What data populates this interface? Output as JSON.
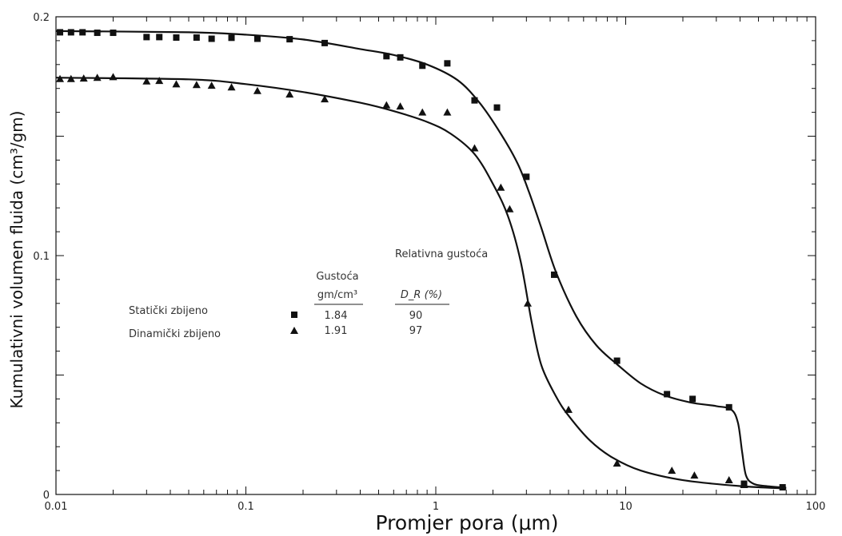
{
  "chart_data": {
    "type": "scatter",
    "title": "",
    "xlabel": "Promjer pora (μm)",
    "ylabel": "Kumulativni volumen fluida (cm³/gm)",
    "xscale": "log",
    "xlim": [
      0.01,
      100
    ],
    "ylim": [
      0,
      0.2
    ],
    "x_tick_labels": [
      "0.01",
      "0.1",
      "1",
      "10",
      "100"
    ],
    "y_tick_labels": [
      "0",
      "0.1",
      "0.2"
    ],
    "grid": false,
    "legend": {
      "position": "center-left",
      "header_density": "Gustoća",
      "header_density_unit": "gm/cm³",
      "header_relative": "Relativna gustoća",
      "header_relative_unit": "D_R (%)",
      "rows": [
        {
          "label": "Statički zbijeno",
          "marker": "square",
          "density": "1.84",
          "relative": "90"
        },
        {
          "label": "Dinamički zbijeno",
          "marker": "triangle",
          "density": "1.91",
          "relative": "97"
        }
      ]
    },
    "series": [
      {
        "name": "Statički zbijeno",
        "marker": "square",
        "color": "#111111",
        "points": [
          [
            0.0105,
            0.1935
          ],
          [
            0.012,
            0.1935
          ],
          [
            0.0138,
            0.1935
          ],
          [
            0.0165,
            0.1933
          ],
          [
            0.02,
            0.1933
          ],
          [
            0.03,
            0.1915
          ],
          [
            0.035,
            0.1915
          ],
          [
            0.043,
            0.1913
          ],
          [
            0.055,
            0.1913
          ],
          [
            0.066,
            0.1908
          ],
          [
            0.084,
            0.1912
          ],
          [
            0.115,
            0.1908
          ],
          [
            0.17,
            0.1906
          ],
          [
            0.26,
            0.189
          ],
          [
            0.55,
            0.1835
          ],
          [
            0.65,
            0.183
          ],
          [
            0.85,
            0.1795
          ],
          [
            1.15,
            0.1805
          ],
          [
            1.6,
            0.165
          ],
          [
            2.1,
            0.162
          ],
          [
            3.0,
            0.133
          ],
          [
            4.2,
            0.092
          ],
          [
            9.0,
            0.056
          ],
          [
            16.5,
            0.042
          ],
          [
            22.5,
            0.04
          ],
          [
            35.0,
            0.0365
          ],
          [
            42.0,
            0.0045
          ],
          [
            67.0,
            0.003
          ]
        ],
        "fit_curve": [
          [
            0.01,
            0.194
          ],
          [
            0.05,
            0.1935
          ],
          [
            0.1,
            0.1925
          ],
          [
            0.2,
            0.1905
          ],
          [
            0.4,
            0.1865
          ],
          [
            0.6,
            0.184
          ],
          [
            0.9,
            0.18
          ],
          [
            1.3,
            0.1735
          ],
          [
            1.7,
            0.164
          ],
          [
            2.2,
            0.151
          ],
          [
            2.7,
            0.1385
          ],
          [
            3.1,
            0.1265
          ],
          [
            3.6,
            0.1115
          ],
          [
            4.3,
            0.093
          ],
          [
            5.5,
            0.0745
          ],
          [
            7.0,
            0.0625
          ],
          [
            9.0,
            0.0545
          ],
          [
            12.0,
            0.0465
          ],
          [
            16.0,
            0.0415
          ],
          [
            22.0,
            0.0385
          ],
          [
            30.0,
            0.037
          ],
          [
            36.0,
            0.0355
          ],
          [
            39.0,
            0.03
          ],
          [
            41.0,
            0.018
          ],
          [
            43.0,
            0.008
          ],
          [
            47.0,
            0.0045
          ],
          [
            55.0,
            0.0035
          ],
          [
            70.0,
            0.0028
          ]
        ]
      },
      {
        "name": "Dinamički zbijeno",
        "marker": "triangle",
        "color": "#111111",
        "points": [
          [
            0.0105,
            0.174
          ],
          [
            0.012,
            0.174
          ],
          [
            0.014,
            0.1742
          ],
          [
            0.0165,
            0.1745
          ],
          [
            0.02,
            0.1748
          ],
          [
            0.03,
            0.173
          ],
          [
            0.035,
            0.1732
          ],
          [
            0.043,
            0.1718
          ],
          [
            0.055,
            0.1715
          ],
          [
            0.066,
            0.1712
          ],
          [
            0.084,
            0.1705
          ],
          [
            0.115,
            0.169
          ],
          [
            0.17,
            0.1675
          ],
          [
            0.26,
            0.1655
          ],
          [
            0.55,
            0.163
          ],
          [
            0.65,
            0.1625
          ],
          [
            0.85,
            0.16
          ],
          [
            1.15,
            0.16
          ],
          [
            1.6,
            0.145
          ],
          [
            2.2,
            0.1285
          ],
          [
            2.45,
            0.1195
          ],
          [
            3.05,
            0.08
          ],
          [
            5.0,
            0.0355
          ],
          [
            9.0,
            0.013
          ],
          [
            17.5,
            0.01
          ],
          [
            23.0,
            0.008
          ],
          [
            35.0,
            0.006
          ],
          [
            42.0,
            0.004
          ]
        ],
        "fit_curve": [
          [
            0.01,
            0.1745
          ],
          [
            0.05,
            0.1738
          ],
          [
            0.1,
            0.1718
          ],
          [
            0.2,
            0.1685
          ],
          [
            0.4,
            0.164
          ],
          [
            0.6,
            0.1605
          ],
          [
            0.9,
            0.156
          ],
          [
            1.2,
            0.151
          ],
          [
            1.6,
            0.1425
          ],
          [
            2.0,
            0.13
          ],
          [
            2.4,
            0.1165
          ],
          [
            2.8,
            0.0975
          ],
          [
            3.2,
            0.072
          ],
          [
            3.6,
            0.054
          ],
          [
            4.3,
            0.041
          ],
          [
            5.0,
            0.033
          ],
          [
            6.5,
            0.0225
          ],
          [
            8.5,
            0.0155
          ],
          [
            12.0,
            0.01
          ],
          [
            20.0,
            0.006
          ],
          [
            40.0,
            0.0035
          ],
          [
            70.0,
            0.0025
          ]
        ]
      }
    ]
  }
}
